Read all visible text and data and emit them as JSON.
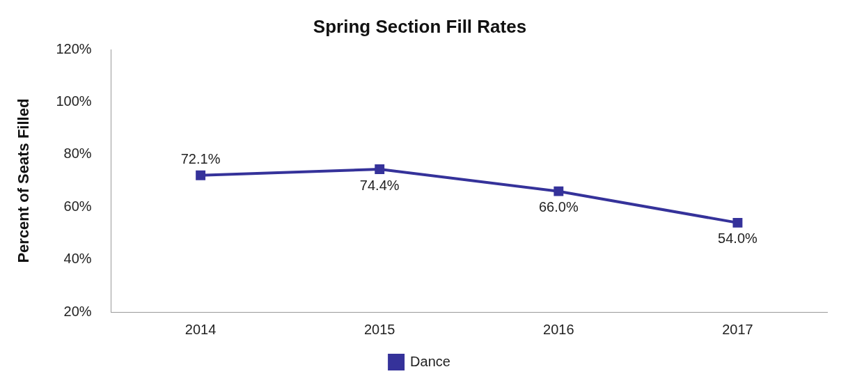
{
  "chart_data": {
    "type": "line",
    "title": "Spring Section Fill Rates",
    "ylabel": "Percent of Seats Filled",
    "categories": [
      "2014",
      "2015",
      "2016",
      "2017"
    ],
    "series": [
      {
        "name": "Dance",
        "color": "#35329a",
        "values": [
          72.1,
          74.4,
          66.0,
          54.0
        ],
        "value_labels": [
          "72.1%",
          "74.4%",
          "66.0%",
          "54.0%"
        ]
      }
    ],
    "ylim": [
      20,
      120
    ],
    "yticks": [
      {
        "value": 20,
        "label": "20%"
      },
      {
        "value": 40,
        "label": "40%"
      },
      {
        "value": 60,
        "label": "60%"
      },
      {
        "value": 80,
        "label": "80%"
      },
      {
        "value": 100,
        "label": "100%"
      },
      {
        "value": 120,
        "label": "120%"
      }
    ],
    "grid": false,
    "legend": "bottom",
    "marker": "square",
    "line_style": "solid"
  }
}
